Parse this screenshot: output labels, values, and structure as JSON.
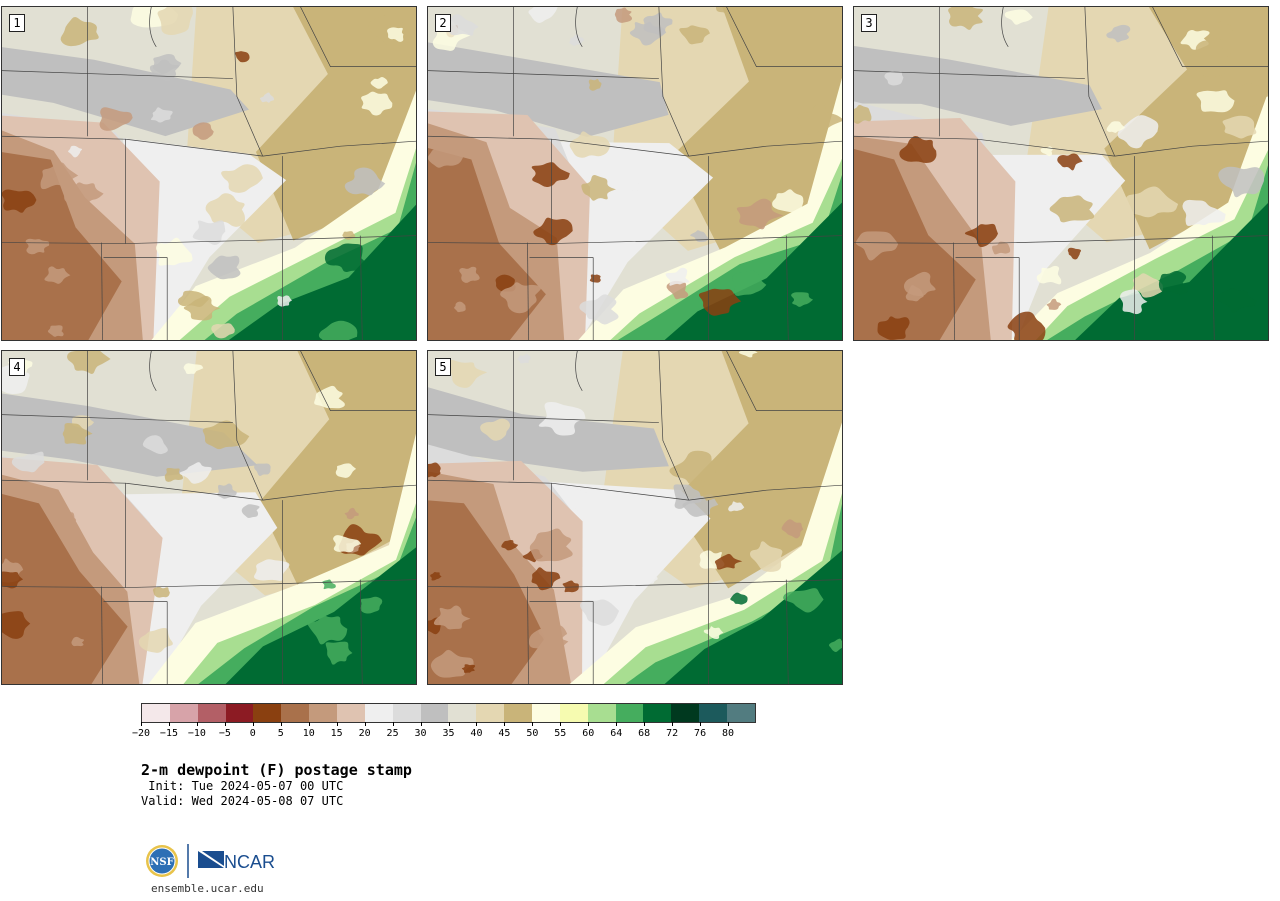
{
  "members": [
    {
      "number": "1",
      "seed": 11
    },
    {
      "number": "2",
      "seed": 23
    },
    {
      "number": "3",
      "seed": 37
    },
    {
      "number": "4",
      "seed": 51
    },
    {
      "number": "5",
      "seed": 67
    }
  ],
  "colorbar": {
    "colors": [
      "#f4e8ea",
      "#d7a3a9",
      "#b35f66",
      "#8c1b23",
      "#8a4010",
      "#a9714b",
      "#c49a7c",
      "#dfc3b1",
      "#efefef",
      "#dcdcdc",
      "#bfbfbf",
      "#e1e0d3",
      "#e4d7b2",
      "#c9b479",
      "#fdfde2",
      "#f6fbb0",
      "#a8de91",
      "#45ad5e",
      "#006b33",
      "#00391f",
      "#1c5a5c",
      "#527c80"
    ],
    "tick_labels": [
      "−20",
      "−15",
      "−10",
      "−5",
      "0",
      "5",
      "10",
      "15",
      "20",
      "25",
      "30",
      "35",
      "40",
      "45",
      "50",
      "55",
      "60",
      "64",
      "68",
      "72",
      "76",
      "80"
    ]
  },
  "title": "2-m dewpoint (F) postage stamp",
  "init": " Init: Tue 2024-05-07 00 UTC",
  "valid": "Valid: Wed 2024-05-08 07 UTC",
  "logos": {
    "nsf": "NSF",
    "ncar": "NCAR"
  },
  "website": "ensemble.ucar.edu"
}
